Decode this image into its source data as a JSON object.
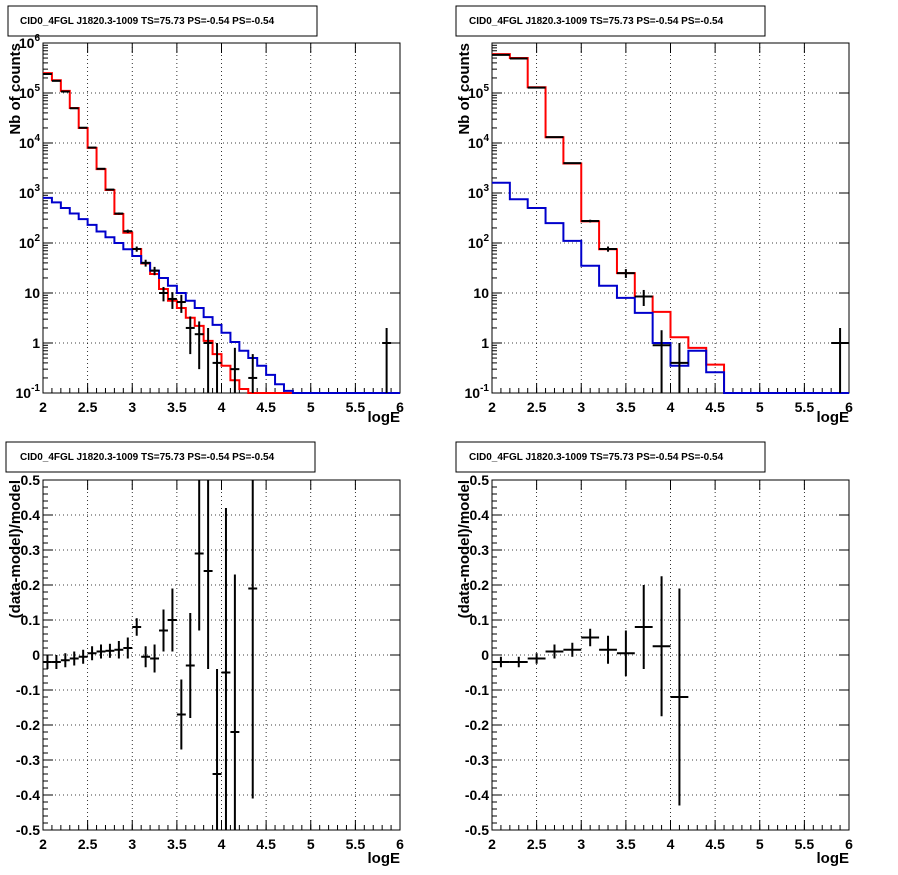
{
  "chart_data": [
    {
      "type": "line",
      "title": "CID0_4FGL J1820.3-1009 TS=75.73 PS=-0.54 PS=-0.54",
      "xlabel": "logE",
      "ylabel": "Nb of counts",
      "xlim": [
        2,
        6
      ],
      "ylim": [
        0.1,
        1000000
      ],
      "yscale": "log",
      "grid": true,
      "x_ticks": [
        "2",
        "2.5",
        "3",
        "3.5",
        "4",
        "4.5",
        "5",
        "5.5",
        "6"
      ],
      "y_ticks": [
        "10^-1",
        "1",
        "10",
        "10^2",
        "10^3",
        "10^4",
        "10^5",
        "10^6"
      ],
      "bin_edges": [
        2.0,
        2.1,
        2.2,
        2.3,
        2.4,
        2.5,
        2.6,
        2.7,
        2.8,
        2.9,
        3.0,
        3.1,
        3.2,
        3.3,
        3.4,
        3.5,
        3.6,
        3.7,
        3.8,
        3.9,
        4.0,
        4.1,
        4.2,
        4.3,
        4.4,
        4.5,
        4.6,
        4.7,
        4.8,
        4.9,
        5.0,
        5.1,
        5.2,
        5.3,
        5.4,
        5.5,
        5.6,
        5.7,
        5.8,
        5.9,
        6.0
      ],
      "series": [
        {
          "color": "#ff0000",
          "style": "step",
          "values": [
            250000,
            180000,
            110000,
            50000,
            20000,
            8000,
            3000,
            1150,
            380,
            160,
            76,
            39,
            24,
            12,
            7,
            5,
            3.2,
            2.2,
            1.1,
            0.6,
            0.35,
            0.18,
            0.12,
            0.1,
            0.1,
            0.1,
            0.1,
            0.1,
            0.1,
            0.1,
            0.1,
            0.1,
            0.1,
            0.1,
            0.1,
            0.1,
            0.1,
            0.1,
            0.1,
            0.1
          ]
        },
        {
          "color": "#0000cc",
          "style": "step",
          "values": [
            800,
            650,
            500,
            390,
            300,
            230,
            170,
            130,
            100,
            75,
            55,
            40,
            28,
            20,
            14,
            10,
            7,
            5,
            3.3,
            2.3,
            1.6,
            1.05,
            0.7,
            0.5,
            0.35,
            0.23,
            0.15,
            0.11,
            0.1,
            0.1,
            0.1,
            0.1,
            0.1,
            0.1,
            0.1,
            0.1,
            0.1,
            0.1,
            0.1,
            0.1
          ]
        },
        {
          "color": "#000000",
          "style": "errorbar",
          "points": [
            {
              "x": 2.05,
              "y": 240000,
              "err": 500
            },
            {
              "x": 2.15,
              "y": 175000,
              "err": 420
            },
            {
              "x": 2.25,
              "y": 107000,
              "err": 330
            },
            {
              "x": 2.35,
              "y": 49500,
              "err": 220
            },
            {
              "x": 2.45,
              "y": 20200,
              "err": 140
            },
            {
              "x": 2.55,
              "y": 8100,
              "err": 90
            },
            {
              "x": 2.65,
              "y": 3050,
              "err": 55
            },
            {
              "x": 2.75,
              "y": 1170,
              "err": 34
            },
            {
              "x": 2.85,
              "y": 388,
              "err": 20
            },
            {
              "x": 2.95,
              "y": 172,
              "err": 13
            },
            {
              "x": 3.05,
              "y": 76,
              "err": 9
            },
            {
              "x": 3.15,
              "y": 40,
              "err": 6.3
            },
            {
              "x": 3.25,
              "y": 28,
              "err": 5.3
            },
            {
              "x": 3.35,
              "y": 10,
              "err": 3.2
            },
            {
              "x": 3.45,
              "y": 7.6,
              "err": 2.8
            },
            {
              "x": 3.55,
              "y": 6.6,
              "err": 2.6
            },
            {
              "x": 3.65,
              "y": 2,
              "err": 1.4
            },
            {
              "x": 3.75,
              "y": 1.5,
              "err": 1.2
            },
            {
              "x": 3.85,
              "y": 1,
              "err": 1
            },
            {
              "x": 3.95,
              "y": 0.4,
              "err": 0.6
            },
            {
              "x": 4.15,
              "y": 0.3,
              "err": 0.5
            },
            {
              "x": 4.35,
              "y": 0.2,
              "err": 0.4
            },
            {
              "x": 5.85,
              "y": 1,
              "err": 1
            }
          ]
        }
      ]
    },
    {
      "type": "line",
      "title": "CID0_4FGL J1820.3-1009 TS=75.73 PS=-0.54 PS=-0.54",
      "xlabel": "logE",
      "ylabel": "Nb of counts",
      "xlim": [
        2,
        6
      ],
      "ylim": [
        0.1,
        1000000
      ],
      "yscale": "log",
      "grid": true,
      "x_ticks": [
        "2",
        "2.5",
        "3",
        "3.5",
        "4",
        "4.5",
        "5",
        "5.5",
        "6"
      ],
      "y_ticks": [
        "10^-1",
        "1",
        "10",
        "10^2",
        "10^3",
        "10^4",
        "10^5"
      ],
      "bin_edges": [
        2.0,
        2.2,
        2.4,
        2.6,
        2.8,
        3.0,
        3.2,
        3.4,
        3.6,
        3.8,
        4.0,
        4.2,
        4.4,
        4.6,
        4.8,
        5.0,
        5.2,
        5.4,
        5.6,
        5.8,
        6.0
      ],
      "series": [
        {
          "color": "#ff0000",
          "style": "step",
          "values": [
            600000,
            500000,
            130000,
            13000,
            3900,
            270,
            75,
            25,
            8.5,
            4.2,
            1.3,
            0.8,
            0.37,
            0.1,
            0.1,
            0.1,
            0.1,
            0.1,
            0.1,
            0.1
          ]
        },
        {
          "color": "#0000cc",
          "style": "step",
          "values": [
            1600,
            750,
            500,
            250,
            110,
            35,
            14,
            8,
            4,
            1,
            0.35,
            0.7,
            0.26,
            0.1,
            0.1,
            0.1,
            0.1,
            0.1,
            0.1,
            0.1
          ]
        },
        {
          "color": "#000000",
          "style": "errorbar",
          "points": [
            {
              "x": 2.1,
              "y": 580000,
              "err": 760
            },
            {
              "x": 2.3,
              "y": 490000,
              "err": 700
            },
            {
              "x": 2.5,
              "y": 128000,
              "err": 360
            },
            {
              "x": 2.7,
              "y": 13100,
              "err": 115
            },
            {
              "x": 2.9,
              "y": 3950,
              "err": 63
            },
            {
              "x": 3.1,
              "y": 275,
              "err": 17
            },
            {
              "x": 3.3,
              "y": 76,
              "err": 9
            },
            {
              "x": 3.5,
              "y": 25,
              "err": 5
            },
            {
              "x": 3.7,
              "y": 8.5,
              "err": 3
            },
            {
              "x": 3.9,
              "y": 0.9,
              "err": 0.9
            },
            {
              "x": 4.1,
              "y": 0.4,
              "err": 0.6
            },
            {
              "x": 5.9,
              "y": 1,
              "err": 1
            }
          ]
        }
      ]
    },
    {
      "type": "scatter",
      "title": "CID0_4FGL J1820.3-1009 TS=75.73 PS=-0.54 PS=-0.54",
      "xlabel": "logE",
      "ylabel": "(data-model)/model",
      "xlim": [
        2,
        6
      ],
      "ylim": [
        -0.5,
        0.5
      ],
      "grid": true,
      "x_ticks": [
        "2",
        "2.5",
        "3",
        "3.5",
        "4",
        "4.5",
        "5",
        "5.5",
        "6"
      ],
      "y_ticks": [
        "-0.5",
        "-0.4",
        "-0.3",
        "-0.2",
        "-0.1",
        "0",
        "0.1",
        "0.2",
        "0.3",
        "0.4",
        "0.5"
      ],
      "series": [
        {
          "color": "#000000",
          "style": "errorbar",
          "x_halfwidth": 0.05,
          "points": [
            {
              "x": 2.05,
              "y": -0.02,
              "err": 0.02
            },
            {
              "x": 2.15,
              "y": -0.02,
              "err": 0.02
            },
            {
              "x": 2.25,
              "y": -0.015,
              "err": 0.02
            },
            {
              "x": 2.35,
              "y": -0.01,
              "err": 0.02
            },
            {
              "x": 2.45,
              "y": -0.005,
              "err": 0.02
            },
            {
              "x": 2.55,
              "y": 0.005,
              "err": 0.02
            },
            {
              "x": 2.65,
              "y": 0.01,
              "err": 0.02
            },
            {
              "x": 2.75,
              "y": 0.012,
              "err": 0.02
            },
            {
              "x": 2.85,
              "y": 0.015,
              "err": 0.025
            },
            {
              "x": 2.95,
              "y": 0.02,
              "err": 0.03
            },
            {
              "x": 3.05,
              "y": 0.08,
              "err": 0.025
            },
            {
              "x": 3.15,
              "y": -0.005,
              "err": 0.03
            },
            {
              "x": 3.25,
              "y": -0.01,
              "err": 0.04
            },
            {
              "x": 3.35,
              "y": 0.07,
              "err": 0.06
            },
            {
              "x": 3.45,
              "y": 0.1,
              "err": 0.09
            },
            {
              "x": 3.55,
              "y": -0.17,
              "err": 0.1
            },
            {
              "x": 3.65,
              "y": -0.03,
              "err": 0.15
            },
            {
              "x": 3.75,
              "y": 0.29,
              "err": 0.22
            },
            {
              "x": 3.85,
              "y": 0.24,
              "err": 0.28
            },
            {
              "x": 3.95,
              "y": -0.34,
              "err": 0.3
            },
            {
              "x": 4.05,
              "y": -0.05,
              "err": 0.47
            },
            {
              "x": 4.15,
              "y": -0.22,
              "err": 0.45
            },
            {
              "x": 4.35,
              "y": 0.19,
              "err": 0.6
            }
          ]
        }
      ]
    },
    {
      "type": "scatter",
      "title": "CID0_4FGL J1820.3-1009 TS=75.73 PS=-0.54 PS=-0.54",
      "xlabel": "logE",
      "ylabel": "(data-model)/model",
      "xlim": [
        2,
        6
      ],
      "ylim": [
        -0.5,
        0.5
      ],
      "grid": true,
      "x_ticks": [
        "2",
        "2.5",
        "3",
        "3.5",
        "4",
        "4.5",
        "5",
        "5.5",
        "6"
      ],
      "y_ticks": [
        "-0.5",
        "-0.4",
        "-0.3",
        "-0.2",
        "-0.1",
        "0",
        "0.1",
        "0.2",
        "0.3",
        "0.4",
        "0.5"
      ],
      "series": [
        {
          "color": "#000000",
          "style": "errorbar",
          "x_halfwidth": 0.1,
          "points": [
            {
              "x": 2.1,
              "y": -0.02,
              "err": 0.015
            },
            {
              "x": 2.3,
              "y": -0.02,
              "err": 0.015
            },
            {
              "x": 2.5,
              "y": -0.01,
              "err": 0.015
            },
            {
              "x": 2.7,
              "y": 0.01,
              "err": 0.02
            },
            {
              "x": 2.9,
              "y": 0.015,
              "err": 0.02
            },
            {
              "x": 3.1,
              "y": 0.05,
              "err": 0.025
            },
            {
              "x": 3.3,
              "y": 0.015,
              "err": 0.04
            },
            {
              "x": 3.5,
              "y": 0.005,
              "err": 0.065
            },
            {
              "x": 3.7,
              "y": 0.08,
              "err": 0.12
            },
            {
              "x": 3.9,
              "y": 0.025,
              "err": 0.2
            },
            {
              "x": 4.1,
              "y": -0.12,
              "err": 0.31
            }
          ]
        }
      ]
    }
  ]
}
